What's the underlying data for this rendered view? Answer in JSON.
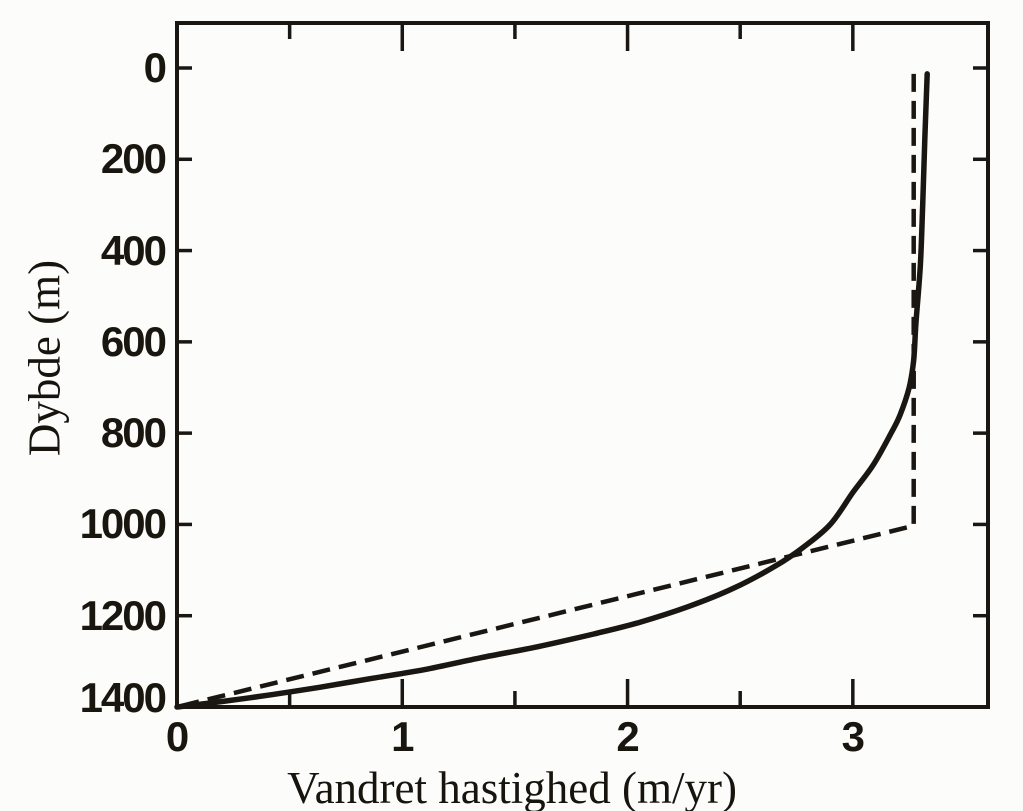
{
  "page": {
    "background": "#fcfcfa",
    "ink": "#1a1712"
  },
  "chart_data": {
    "type": "line",
    "title": "",
    "xlabel": "Vandret hastighed (m/yr)",
    "ylabel": "Dybde (m)",
    "grid": false,
    "legend": null,
    "x_axis": {
      "min": 0,
      "max": 3.6,
      "major_ticks": [
        1,
        2,
        3
      ],
      "minor_ticks": [
        0.5,
        1.5,
        2.5
      ],
      "labels": [
        {
          "value": 0,
          "text": "0"
        },
        {
          "value": 1,
          "text": "1"
        },
        {
          "value": 2,
          "text": "2"
        },
        {
          "value": 3,
          "text": "3"
        }
      ]
    },
    "y_axis": {
      "min": 0,
      "max": 1400,
      "direction": "down",
      "ticks": [
        0,
        200,
        400,
        600,
        800,
        1000,
        1200
      ],
      "labels": [
        {
          "value": 0,
          "text": "0"
        },
        {
          "value": 200,
          "text": "200"
        },
        {
          "value": 400,
          "text": "400"
        },
        {
          "value": 600,
          "text": "600"
        },
        {
          "value": 800,
          "text": "800"
        },
        {
          "value": 1000,
          "text": "1000"
        },
        {
          "value": 1200,
          "text": "1200"
        },
        {
          "value": 1400,
          "text": "1400"
        }
      ]
    },
    "series": [
      {
        "id": "solid-curve",
        "style": "solid",
        "smooth": true,
        "points": [
          [
            3.33,
            13
          ],
          [
            3.32,
            150
          ],
          [
            3.31,
            300
          ],
          [
            3.3,
            430
          ],
          [
            3.28,
            560
          ],
          [
            3.27,
            640
          ],
          [
            3.25,
            700
          ],
          [
            3.21,
            760
          ],
          [
            3.17,
            800
          ],
          [
            3.09,
            870
          ],
          [
            3.0,
            930
          ],
          [
            2.9,
            1000
          ],
          [
            2.78,
            1050
          ],
          [
            2.66,
            1090
          ],
          [
            2.47,
            1140
          ],
          [
            2.27,
            1180
          ],
          [
            2.05,
            1215
          ],
          [
            1.85,
            1240
          ],
          [
            1.6,
            1268
          ],
          [
            1.35,
            1292
          ],
          [
            1.1,
            1318
          ],
          [
            0.87,
            1337
          ],
          [
            0.63,
            1357
          ],
          [
            0.42,
            1373
          ],
          [
            0.2,
            1388
          ],
          [
            0.0,
            1400
          ]
        ]
      },
      {
        "id": "dashed-curve",
        "style": "dashed",
        "smooth": false,
        "points": [
          [
            3.27,
            13
          ],
          [
            3.27,
            1003
          ],
          [
            0.0,
            1400
          ]
        ]
      }
    ]
  }
}
